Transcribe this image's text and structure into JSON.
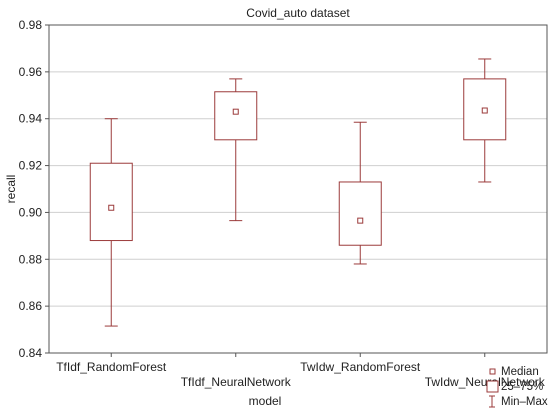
{
  "chart_data": {
    "type": "box",
    "title": "Covid_auto dataset",
    "xlabel": "model",
    "ylabel": "recall",
    "ylim": [
      0.84,
      0.98
    ],
    "yticks": [
      "0.84",
      "0.86",
      "0.88",
      "0.90",
      "0.92",
      "0.94",
      "0.96",
      "0.98"
    ],
    "grid": true,
    "categories": [
      "TfIdf_RandomForest",
      "TfIdf_NeuralNetwork",
      "TwIdw_RandomForest",
      "TwIdw_NeuralNetwork"
    ],
    "boxes": [
      {
        "min": 0.8515,
        "q1": 0.888,
        "median": 0.902,
        "q3": 0.921,
        "max": 0.94
      },
      {
        "min": 0.8965,
        "q1": 0.931,
        "median": 0.943,
        "q3": 0.9515,
        "max": 0.957
      },
      {
        "min": 0.878,
        "q1": 0.886,
        "median": 0.8965,
        "q3": 0.913,
        "max": 0.9385
      },
      {
        "min": 0.913,
        "q1": 0.931,
        "median": 0.9435,
        "q3": 0.957,
        "max": 0.9655
      }
    ],
    "legend": {
      "position": "bottom-right",
      "items": [
        "Median",
        "25–75%",
        "Min–Max"
      ]
    },
    "color": "#9b3a3a"
  }
}
